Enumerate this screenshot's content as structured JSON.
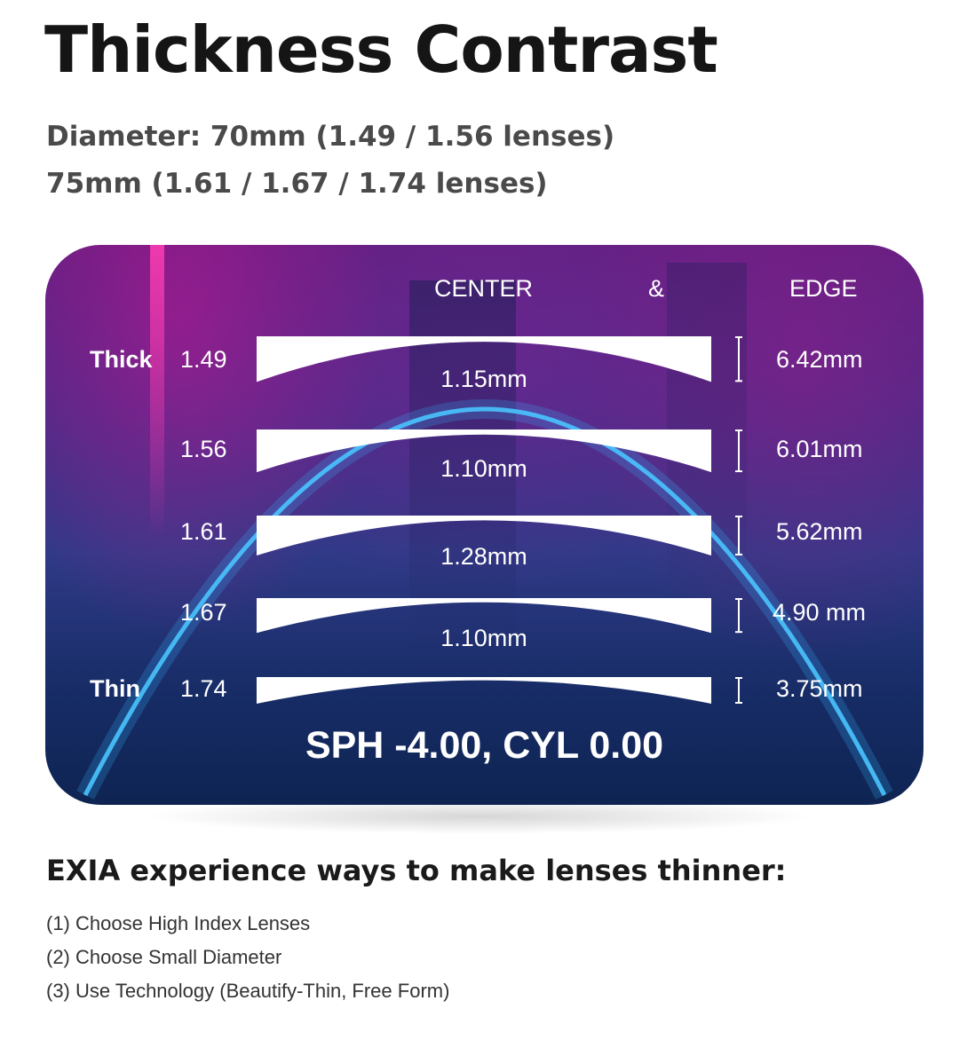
{
  "title": "Thickness Contrast",
  "diameter_lines": [
    "Diameter: 70mm (1.49 / 1.56 lenses)",
    "75mm (1.61 / 1.67 / 1.74 lenses)"
  ],
  "panel": {
    "headers": {
      "center": "CENTER",
      "amp": "&",
      "edge": "EDGE"
    },
    "thick_label": "Thick",
    "thin_label": "Thin",
    "lenses": [
      {
        "index": "1.49",
        "center": "1.15mm",
        "edge": "6.42mm",
        "edge_mm": 6.42
      },
      {
        "index": "1.56",
        "center": "1.10mm",
        "edge": "6.01mm",
        "edge_mm": 6.01
      },
      {
        "index": "1.61",
        "center": "1.28mm",
        "edge": "5.62mm",
        "edge_mm": 5.62
      },
      {
        "index": "1.67",
        "center": "1.10mm",
        "edge": "4.90 mm",
        "edge_mm": 4.9
      },
      {
        "index": "1.74",
        "center": "",
        "edge": "3.75mm",
        "edge_mm": 3.75
      }
    ],
    "prescription": "SPH -4.00, CYL 0.00",
    "colors": {
      "lens": "#ffffff",
      "arc": "#38b6ff"
    }
  },
  "ways": {
    "title": "EXIA experience ways to make lenses thinner:",
    "items": [
      "(1) Choose High Index Lenses",
      "(2) Choose Small Diameter",
      "(3) Use Technology (Beautify-Thin, Free Form)"
    ]
  }
}
